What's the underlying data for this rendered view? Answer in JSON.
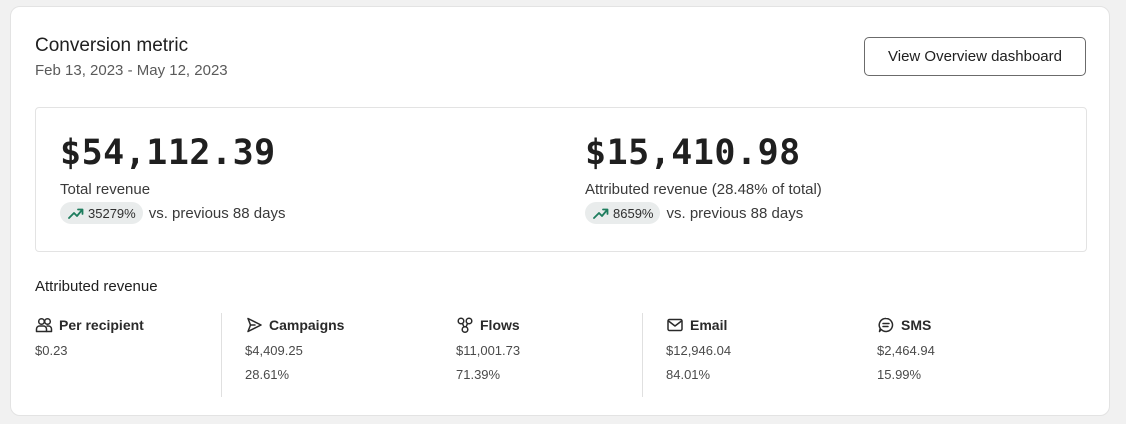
{
  "header": {
    "title": "Conversion metric",
    "date_range": "Feb 13, 2023 - May 12, 2023",
    "button_label": "View Overview dashboard"
  },
  "summary": {
    "total": {
      "amount": "$54,112.39",
      "label": "Total revenue",
      "change": "35279%",
      "comparison": "vs. previous 88 days"
    },
    "attributed": {
      "amount": "$15,410.98",
      "label": "Attributed revenue (28.48% of total)",
      "change": "8659%",
      "comparison": "vs. previous 88 days"
    }
  },
  "breakdown": {
    "title": "Attributed revenue",
    "items": [
      {
        "label": "Per recipient",
        "icon": "people-icon",
        "value": "$0.23",
        "percent": ""
      },
      {
        "label": "Campaigns",
        "icon": "send-icon",
        "value": "$4,409.25",
        "percent": "28.61%"
      },
      {
        "label": "Flows",
        "icon": "flow-icon",
        "value": "$11,001.73",
        "percent": "71.39%"
      },
      {
        "label": "Email",
        "icon": "mail-icon",
        "value": "$12,946.04",
        "percent": "84.01%"
      },
      {
        "label": "SMS",
        "icon": "chat-icon",
        "value": "$2,464.94",
        "percent": "15.99%"
      }
    ]
  },
  "colors": {
    "trend_up": "#1e7d5e",
    "pill_bg": "#e9ecec",
    "border": "#e3e3e3"
  }
}
